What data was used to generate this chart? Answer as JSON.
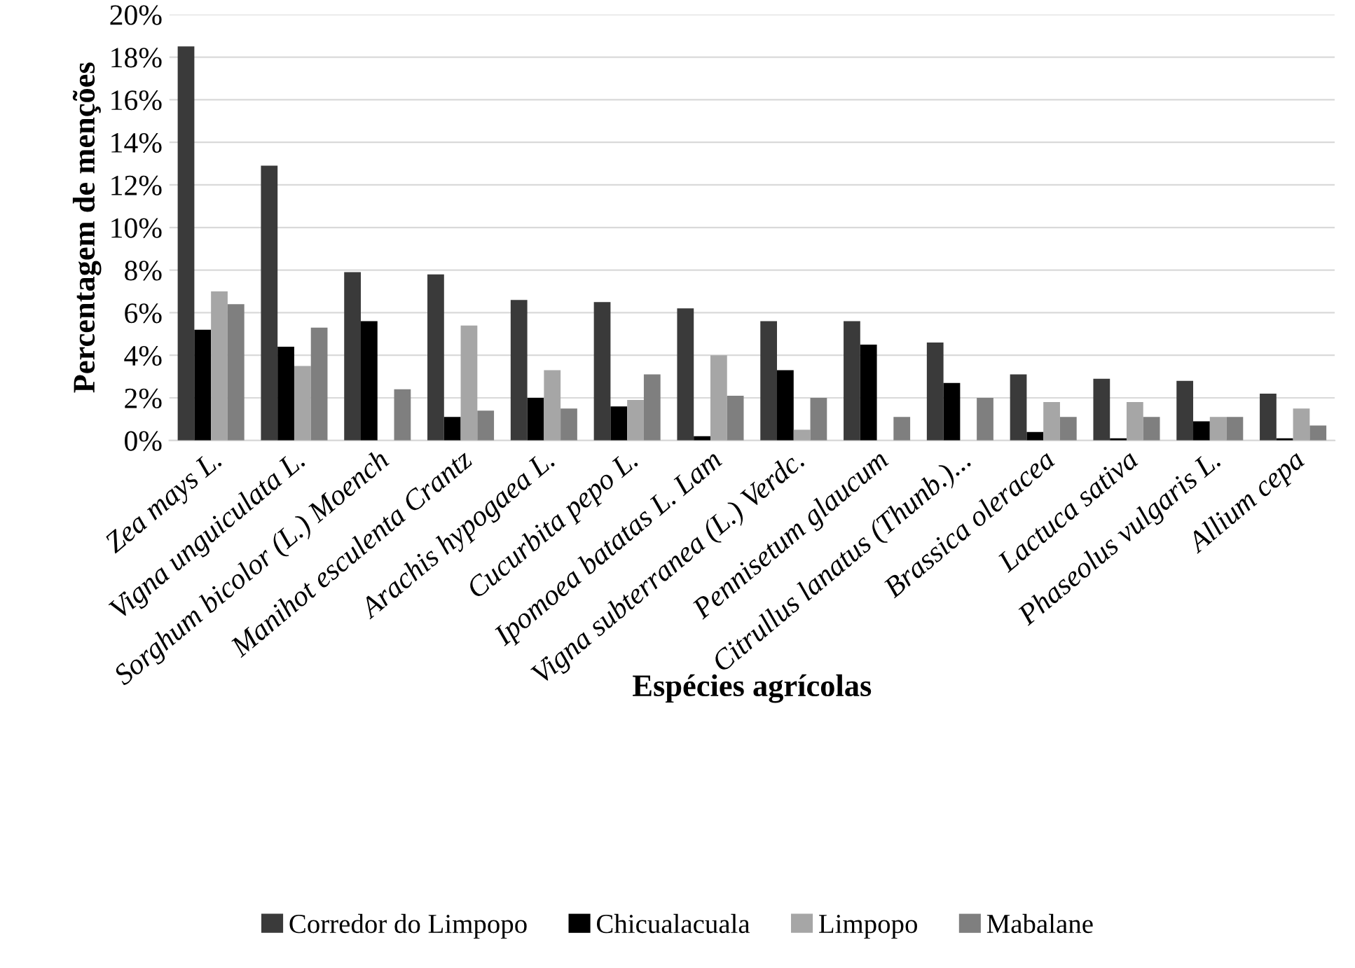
{
  "chart_data": {
    "type": "bar",
    "xlabel": "Espécies agrícolas",
    "ylabel": "Percentagem de menções",
    "categories": [
      "Zea mays L.",
      "Vigna unguiculata L.",
      "Sorghum bicolor (L.) Moench",
      "Manihot esculenta Crantz",
      "Arachis hypogaea L.",
      "Cucurbita pepo L.",
      "Ipomoea batatas L. Lam",
      "Vigna subterranea (L.) Verdc.",
      "Pennisetum glaucum",
      "Citrullus lanatus (Thunb.)...",
      "Brassica oleracea",
      "Lactuca sativa",
      "Phaseolus vulgaris L.",
      "Allium cepa"
    ],
    "series": [
      {
        "name": "Corredor do Limpopo",
        "color": "#3a3a3a",
        "values": [
          18.5,
          12.9,
          7.9,
          7.8,
          6.6,
          6.5,
          6.2,
          5.6,
          5.6,
          4.6,
          3.1,
          2.9,
          2.8,
          2.2
        ]
      },
      {
        "name": "Chicualacuala",
        "color": "#000000",
        "values": [
          5.2,
          4.4,
          5.6,
          1.1,
          2.0,
          1.6,
          0.2,
          3.3,
          4.5,
          2.7,
          0.4,
          0.1,
          0.9,
          0.1
        ]
      },
      {
        "name": "Limpopo",
        "color": "#a6a6a6",
        "values": [
          7.0,
          3.5,
          null,
          5.4,
          3.3,
          1.9,
          4.0,
          0.5,
          null,
          null,
          1.8,
          1.8,
          1.1,
          1.5
        ]
      },
      {
        "name": "Mabalane",
        "color": "#7f7f7f",
        "values": [
          6.4,
          5.3,
          2.4,
          1.4,
          1.5,
          3.1,
          2.1,
          2.0,
          1.1,
          2.0,
          1.1,
          1.1,
          1.1,
          0.7
        ]
      }
    ],
    "ylim": [
      0,
      20
    ],
    "yticks": [
      {
        "value": 0,
        "label": "0%"
      },
      {
        "value": 2,
        "label": "2%"
      },
      {
        "value": 4,
        "label": "4%"
      },
      {
        "value": 6,
        "label": "6%"
      },
      {
        "value": 8,
        "label": "8%"
      },
      {
        "value": 10,
        "label": "10%"
      },
      {
        "value": 12,
        "label": "12%"
      },
      {
        "value": 14,
        "label": "14%"
      },
      {
        "value": 16,
        "label": "16%"
      },
      {
        "value": 18,
        "label": "18%"
      },
      {
        "value": 20,
        "label": "20%"
      }
    ],
    "grid": "y",
    "legend": "bottom"
  }
}
